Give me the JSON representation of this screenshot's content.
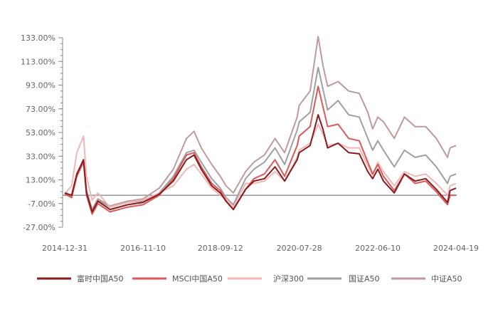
{
  "chart_data": {
    "type": "line",
    "title": "",
    "xlabel": "",
    "ylabel": "",
    "x_ticks": [
      "2014-12-31",
      "2016-11-10",
      "2018-09-12",
      "2020-07-28",
      "2022-06-10",
      "2024-04-19"
    ],
    "y_ticks": [
      "133.00%",
      "113.00%",
      "93.00%",
      "73.00%",
      "53.00%",
      "33.00%",
      "13.00%",
      "-7.00%",
      "-27.00%"
    ],
    "ylim": [
      -27,
      133
    ],
    "baseline": 0,
    "grid": false,
    "legend_position": "bottom",
    "x_dates": [
      "2014-12-31",
      "2015-03-01",
      "2015-04-15",
      "2015-06-12",
      "2015-07-08",
      "2015-08-26",
      "2015-10-15",
      "2016-01-28",
      "2016-06-30",
      "2016-11-10",
      "2017-03-31",
      "2017-07-31",
      "2017-11-22",
      "2018-01-26",
      "2018-03-30",
      "2018-06-29",
      "2018-09-12",
      "2018-10-31",
      "2019-01-03",
      "2019-04-19",
      "2019-06-30",
      "2019-09-30",
      "2019-12-31",
      "2020-03-23",
      "2020-07-10",
      "2020-07-28",
      "2020-10-30",
      "2021-01-08",
      "2021-02-18",
      "2021-03-31",
      "2021-06-30",
      "2021-09-30",
      "2021-12-31",
      "2022-03-15",
      "2022-04-26",
      "2022-06-10",
      "2022-07-29",
      "2022-10-31",
      "2023-01-27",
      "2023-04-30",
      "2023-07-31",
      "2023-10-31",
      "2024-02-05",
      "2024-02-28",
      "2024-04-19"
    ],
    "series": [
      {
        "name": "富时中国A50",
        "color": "#8b1a1a",
        "values": [
          2,
          0,
          18,
          30,
          2,
          -14,
          -5,
          -12,
          -8,
          -6,
          1,
          12,
          30,
          34,
          22,
          8,
          2,
          -5,
          -12,
          5,
          12,
          14,
          24,
          12,
          30,
          36,
          42,
          68,
          56,
          40,
          44,
          36,
          35,
          20,
          14,
          22,
          12,
          2,
          18,
          12,
          14,
          5,
          -6,
          4,
          6
        ]
      },
      {
        "name": "MSCI中国A50",
        "color": "#d9595a",
        "values": [
          1,
          -2,
          16,
          28,
          0,
          -16,
          -7,
          -14,
          -10,
          -8,
          0,
          14,
          34,
          36,
          24,
          10,
          4,
          -5,
          -12,
          5,
          14,
          18,
          30,
          16,
          42,
          50,
          58,
          92,
          75,
          58,
          60,
          48,
          46,
          28,
          18,
          26,
          16,
          4,
          18,
          10,
          12,
          3,
          -8,
          0,
          0
        ]
      },
      {
        "name": "沪深300",
        "color": "#f3b6b6",
        "values": [
          1,
          8,
          36,
          50,
          16,
          -4,
          2,
          -10,
          -6,
          -4,
          2,
          8,
          22,
          26,
          18,
          6,
          0,
          -3,
          -10,
          10,
          10,
          12,
          20,
          12,
          32,
          38,
          44,
          60,
          52,
          42,
          44,
          40,
          40,
          25,
          17,
          28,
          20,
          8,
          20,
          16,
          18,
          10,
          0,
          8,
          10
        ]
      },
      {
        "name": "国证A50",
        "color": "#a0a0a0",
        "values": [
          1,
          -1,
          18,
          30,
          4,
          -12,
          -4,
          -10,
          -6,
          -5,
          2,
          16,
          36,
          38,
          28,
          14,
          6,
          -2,
          -8,
          14,
          22,
          28,
          40,
          26,
          55,
          62,
          70,
          108,
          90,
          72,
          80,
          68,
          66,
          48,
          38,
          46,
          38,
          24,
          38,
          32,
          34,
          24,
          10,
          16,
          18
        ]
      },
      {
        "name": "中证A50",
        "color": "#c09a9a",
        "values": [
          2,
          0,
          18,
          28,
          4,
          -12,
          -3,
          -9,
          -5,
          -3,
          6,
          22,
          48,
          54,
          40,
          26,
          16,
          8,
          2,
          20,
          28,
          34,
          48,
          36,
          66,
          76,
          88,
          134,
          110,
          92,
          96,
          88,
          86,
          70,
          56,
          66,
          62,
          48,
          66,
          58,
          58,
          48,
          32,
          40,
          42
        ]
      }
    ]
  }
}
